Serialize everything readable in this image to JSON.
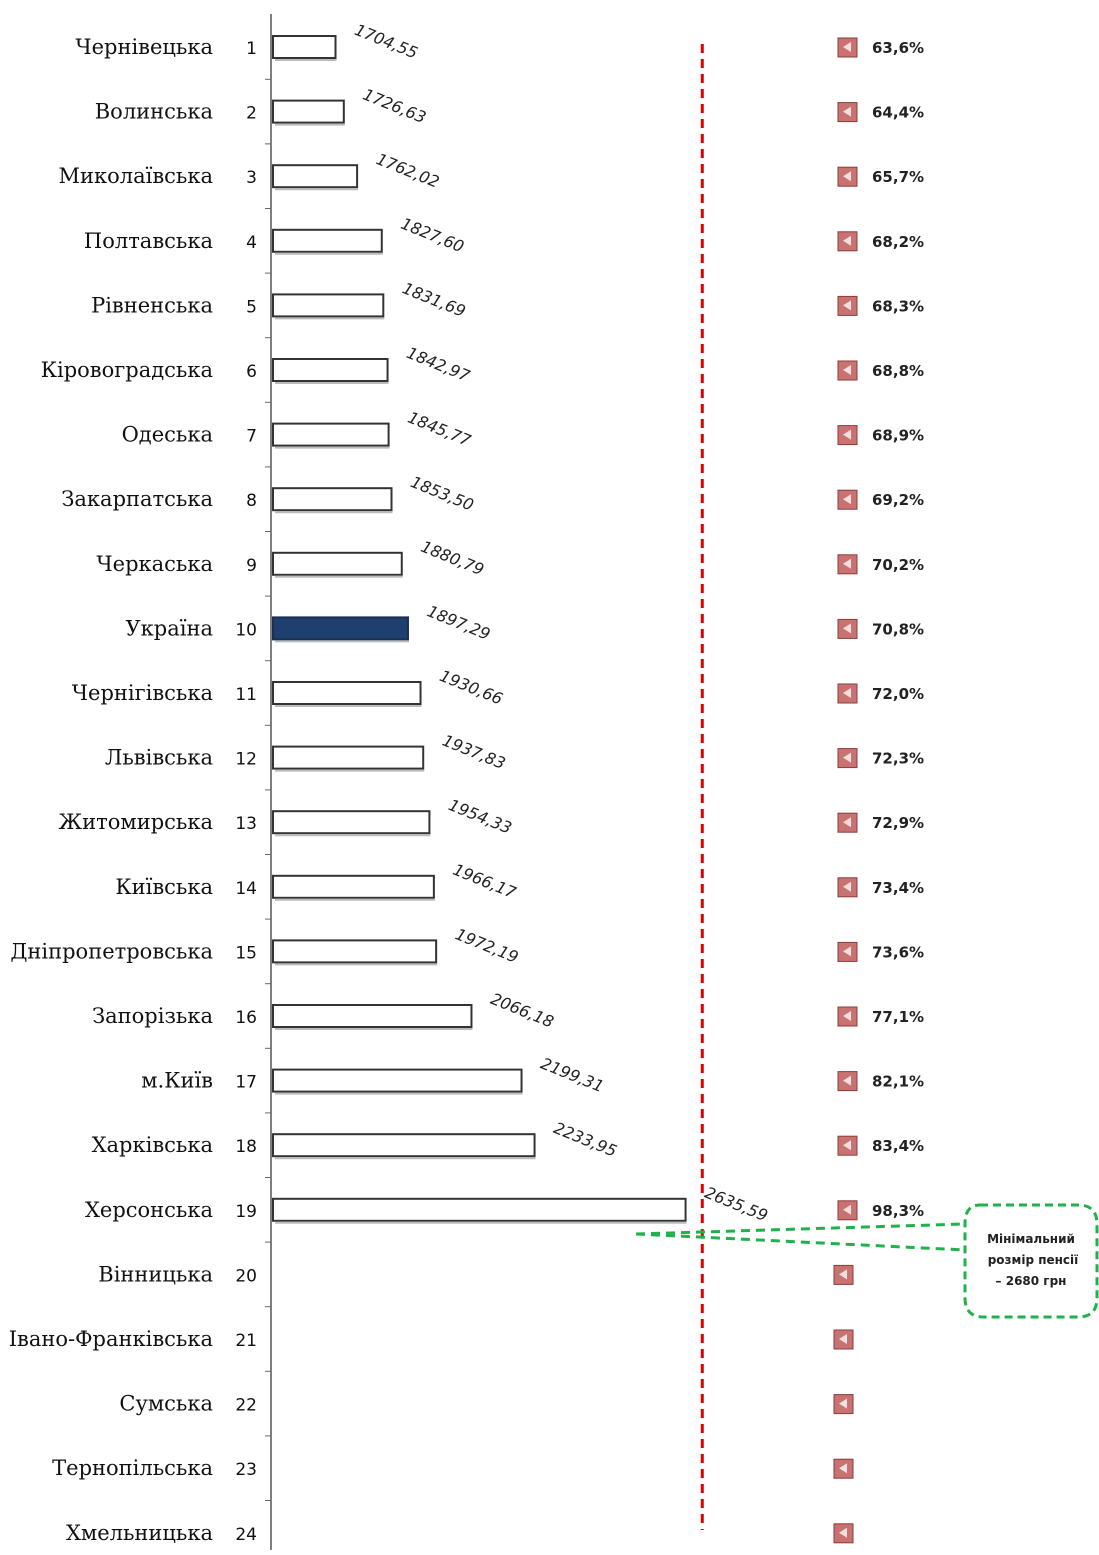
{
  "chart_data": {
    "type": "bar",
    "orientation": "horizontal",
    "categories": [
      "Чернівецька",
      "Волинська",
      "Миколаївська",
      "Полтавська",
      "Рівненська",
      "Кіровоградська",
      "Одеська",
      "Закарпатська",
      "Черкаська",
      "Україна",
      "Чернігівська",
      "Львівська",
      "Житомирська",
      "Київська",
      "Дніпропетровська",
      "Запорізька",
      "м.Київ",
      "Харківська",
      "Херсонська",
      "Вінницька",
      "Івано-Франківська",
      "Сумська",
      "Тернопільська",
      "Хмельницька"
    ],
    "ranks": [
      "1",
      "2",
      "3",
      "4",
      "5",
      "6",
      "7",
      "8",
      "9",
      "10",
      "11",
      "12",
      "13",
      "14",
      "15",
      "16",
      "17",
      "18",
      "19",
      "20",
      "21",
      "22",
      "23",
      "24"
    ],
    "values": [
      1704.55,
      1726.63,
      1762.02,
      1827.6,
      1831.69,
      1842.97,
      1845.77,
      1853.5,
      1880.79,
      1897.29,
      1930.66,
      1937.83,
      1954.33,
      1966.17,
      1972.19,
      2066.18,
      2199.31,
      2233.95,
      2635.59,
      null,
      null,
      null,
      null,
      null
    ],
    "value_labels": [
      "1704,55",
      "1726,63",
      "1762,02",
      "1827,60",
      "1831,69",
      "1842,97",
      "1845,77",
      "1853,50",
      "1880,79",
      "1897,29",
      "1930,66",
      "1937,83",
      "1954,33",
      "1966,17",
      "1972,19",
      "2066,18",
      "2199,31",
      "2233,95",
      "2635,59",
      "",
      "",
      "",
      "",
      ""
    ],
    "percent_labels": [
      "63,6%",
      "64,4%",
      "65,7%",
      "68,2%",
      "68,3%",
      "68,8%",
      "68,9%",
      "69,2%",
      "70,2%",
      "70,8%",
      "72,0%",
      "72,3%",
      "72,9%",
      "73,4%",
      "73,6%",
      "77,1%",
      "82,1%",
      "83,4%",
      "98,3%",
      "",
      "",
      "",
      "",
      ""
    ],
    "highlight_category": "Україна",
    "reference_line": {
      "value": 2680
    },
    "callout_lines": [
      "Мінімальний",
      "розмір пенсії",
      "– 2680  грн"
    ],
    "colors": {
      "bar_fill": "#ffffff",
      "bar_stroke": "#333333",
      "highlight_fill": "#1f3f6e",
      "reference_line": "#e00000",
      "callout": "#1fb24a",
      "marker_fill": "#c97272",
      "marker_dark": "#8e3b3b"
    }
  }
}
